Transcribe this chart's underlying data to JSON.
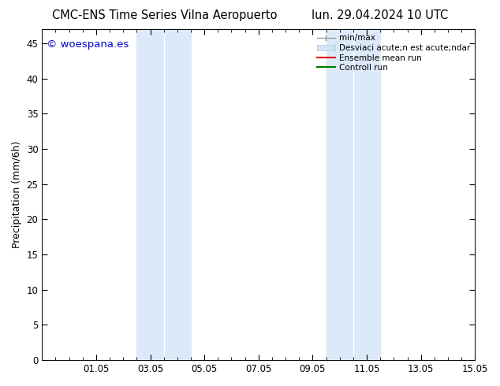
{
  "title_left": "CMC-ENS Time Series Vilna Aeropuerto",
  "title_right": "lun. 29.04.2024 10 UTC",
  "ylabel": "Precipitation (mm/6h)",
  "watermark": "© woespana.es",
  "watermark_color": "#0000cc",
  "xlim_start": -0.5,
  "xlim_end": 15.5,
  "ylim_bottom": 0,
  "ylim_top": 47,
  "yticks": [
    0,
    5,
    10,
    15,
    20,
    25,
    30,
    35,
    40,
    45
  ],
  "xtick_labels": [
    "01.05",
    "03.05",
    "05.05",
    "07.05",
    "09.05",
    "11.05",
    "13.05",
    "15.05"
  ],
  "xtick_positions": [
    2,
    4,
    6,
    8,
    10,
    12,
    14,
    16
  ],
  "background_color": "#ffffff",
  "shaded_regions": [
    {
      "xmin": 3.5,
      "xmax": 4.5,
      "color": "#dce9f8"
    },
    {
      "xmin": 4.5,
      "xmax": 6.5,
      "color": "#cfe0f5"
    },
    {
      "xmin": 10.5,
      "xmax": 11.5,
      "color": "#dce9f8"
    },
    {
      "xmin": 11.5,
      "xmax": 13.5,
      "color": "#cfe0f5"
    }
  ],
  "legend_labels": [
    "min/max",
    "Desviaci acute;n est acute;ndar",
    "Ensemble mean run",
    "Controll run"
  ],
  "legend_colors": [
    "#aaaaaa",
    "#ccddee",
    "#ff0000",
    "#008800"
  ],
  "fig_width": 6.34,
  "fig_height": 4.9,
  "dpi": 100
}
